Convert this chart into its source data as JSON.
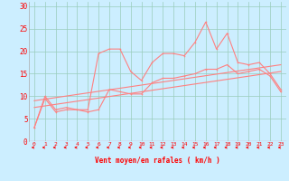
{
  "x_ticks": [
    0,
    1,
    2,
    3,
    4,
    5,
    6,
    7,
    8,
    9,
    10,
    11,
    12,
    13,
    14,
    15,
    16,
    17,
    18,
    19,
    20,
    21,
    22,
    23
  ],
  "rafales_x": [
    0,
    1,
    2,
    3,
    4,
    5,
    6,
    7,
    8,
    9,
    10,
    11,
    12,
    13,
    14,
    15,
    16,
    17,
    18,
    19,
    20,
    21,
    22,
    23
  ],
  "rafales_y": [
    3,
    10,
    7,
    7.5,
    7,
    7,
    19.5,
    20.5,
    20.5,
    15.5,
    13.5,
    17.5,
    19.5,
    19.5,
    19,
    22,
    26.5,
    20.5,
    24,
    17.5,
    17,
    17.5,
    15,
    11.5
  ],
  "moyen_x": [
    0,
    1,
    2,
    3,
    4,
    5,
    6,
    7,
    8,
    9,
    10,
    11,
    12,
    13,
    14,
    15,
    16,
    17,
    18,
    19,
    20,
    21,
    22,
    23
  ],
  "moyen_y": [
    3,
    9.5,
    6.5,
    7,
    7,
    6.5,
    7,
    11.5,
    11,
    10.5,
    10.5,
    13,
    14,
    14,
    14.5,
    15,
    16,
    16,
    17,
    15,
    15.5,
    16,
    14.5,
    11
  ],
  "trend1_x": [
    0,
    23
  ],
  "trend1_y": [
    9,
    17
  ],
  "trend2_x": [
    0,
    23
  ],
  "trend2_y": [
    7.5,
    15.5
  ],
  "line_color": "#ff8080",
  "bg_color": "#cceeff",
  "grid_color": "#99ccbb",
  "arrow_color": "#ff0000",
  "xlabel": "Vent moyen/en rafales ( km/h )",
  "ylim": [
    0,
    31
  ],
  "xlim": [
    -0.5,
    23.5
  ],
  "yticks": [
    0,
    5,
    10,
    15,
    20,
    25,
    30
  ],
  "figsize": [
    3.2,
    2.0
  ],
  "dpi": 100
}
